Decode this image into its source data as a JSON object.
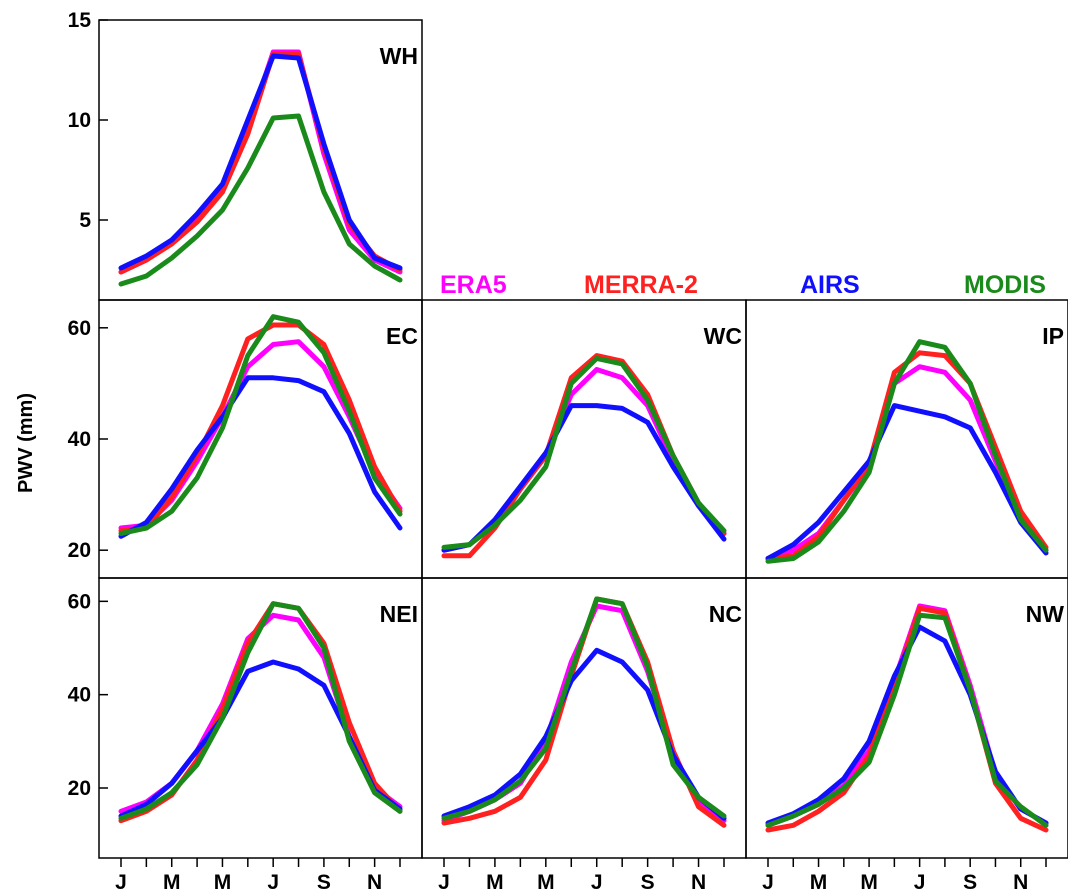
{
  "chart_data": {
    "type": "line",
    "ylabel": "PWV (mm)",
    "x_tick_labels": [
      "J",
      "M",
      "M",
      "J",
      "S",
      "N"
    ],
    "legend": [
      {
        "name": "ERA5",
        "color": "#ff00ff"
      },
      {
        "name": "MERRA-2",
        "color": "#ff2020"
      },
      {
        "name": "AIRS",
        "color": "#1010ff"
      },
      {
        "name": "MODIS",
        "color": "#1a8a1a"
      }
    ],
    "panels": [
      {
        "id": "WH",
        "title": "WH",
        "ylim": [
          1,
          15
        ],
        "yticks": [
          5,
          10,
          15
        ],
        "series": [
          {
            "name": "ERA5",
            "values": [
              2.4,
              3.0,
              3.9,
              5.1,
              6.6,
              9.6,
              13.4,
              13.4,
              8.3,
              4.5,
              3.0,
              2.4
            ]
          },
          {
            "name": "MERRA-2",
            "values": [
              2.4,
              3.0,
              3.8,
              4.9,
              6.4,
              9.3,
              13.3,
              13.3,
              8.6,
              4.8,
              3.2,
              2.5
            ]
          },
          {
            "name": "AIRS",
            "values": [
              2.6,
              3.2,
              4.0,
              5.3,
              6.8,
              10.0,
              13.2,
              13.1,
              8.8,
              5.0,
              3.1,
              2.6
            ]
          },
          {
            "name": "MODIS",
            "values": [
              1.8,
              2.2,
              3.1,
              4.2,
              5.5,
              7.6,
              10.1,
              10.2,
              6.4,
              3.8,
              2.7,
              2.0
            ]
          }
        ]
      },
      {
        "id": "EC",
        "title": "EC",
        "ylim": [
          15,
          65
        ],
        "yticks": [
          20,
          40,
          60
        ],
        "series": [
          {
            "name": "ERA5",
            "values": [
              24.0,
              24.5,
              29.0,
              36.0,
              44.0,
              53.0,
              57.0,
              57.5,
              53.0,
              44.0,
              34.0,
              27.5
            ]
          },
          {
            "name": "MERRA-2",
            "values": [
              23.5,
              24.0,
              29.5,
              37.0,
              46.0,
              58.0,
              60.5,
              60.5,
              57.0,
              47.0,
              35.0,
              27.0
            ]
          },
          {
            "name": "AIRS",
            "values": [
              22.5,
              25.0,
              31.0,
              38.0,
              44.0,
              51.0,
              51.0,
              50.5,
              48.5,
              41.0,
              30.5,
              24.0
            ]
          },
          {
            "name": "MODIS",
            "values": [
              23.0,
              24.0,
              27.0,
              33.0,
              42.0,
              55.0,
              62.0,
              61.0,
              55.5,
              45.0,
              33.0,
              26.5
            ]
          }
        ]
      },
      {
        "id": "WC",
        "title": "WC",
        "ylim": [
          15,
          65
        ],
        "yticks": [],
        "series": [
          {
            "name": "ERA5",
            "values": [
              20.0,
              21.0,
              25.0,
              31.0,
              37.0,
              48.0,
              52.5,
              51.0,
              46.0,
              36.0,
              28.0,
              23.0
            ]
          },
          {
            "name": "MERRA-2",
            "values": [
              19.0,
              19.0,
              24.0,
              31.0,
              37.0,
              51.0,
              55.0,
              54.0,
              48.0,
              37.0,
              28.5,
              23.0
            ]
          },
          {
            "name": "AIRS",
            "values": [
              20.0,
              21.0,
              25.5,
              31.5,
              37.5,
              46.0,
              46.0,
              45.5,
              43.0,
              35.0,
              28.0,
              22.0
            ]
          },
          {
            "name": "MODIS",
            "values": [
              20.5,
              21.0,
              24.5,
              29.0,
              35.0,
              50.0,
              54.5,
              53.5,
              47.0,
              37.0,
              28.5,
              23.5
            ]
          }
        ]
      },
      {
        "id": "IP",
        "title": "IP",
        "ylim": [
          15,
          65
        ],
        "yticks": [],
        "series": [
          {
            "name": "ERA5",
            "values": [
              18.5,
              20.0,
              23.0,
              29.0,
              35.0,
              50.0,
              53.0,
              52.0,
              47.0,
              36.0,
              26.0,
              20.0
            ]
          },
          {
            "name": "MERRA-2",
            "values": [
              18.5,
              19.0,
              22.5,
              29.0,
              35.5,
              52.0,
              55.5,
              55.0,
              50.0,
              38.5,
              27.0,
              20.5
            ]
          },
          {
            "name": "AIRS",
            "values": [
              18.5,
              21.0,
              25.0,
              30.5,
              36.0,
              46.0,
              45.0,
              44.0,
              42.0,
              34.0,
              25.0,
              19.5
            ]
          },
          {
            "name": "MODIS",
            "values": [
              18.0,
              18.5,
              21.5,
              27.0,
              34.0,
              50.0,
              57.5,
              56.5,
              50.0,
              37.0,
              25.5,
              20.0
            ]
          }
        ]
      },
      {
        "id": "NEI",
        "title": "NEI",
        "ylim": [
          5,
          65
        ],
        "yticks": [
          20,
          40,
          60
        ],
        "series": [
          {
            "name": "ERA5",
            "values": [
              15.0,
              17.0,
              21.0,
              28.0,
              38.0,
              52.0,
              57.0,
              56.0,
              48.0,
              31.0,
              20.0,
              16.0
            ]
          },
          {
            "name": "MERRA-2",
            "values": [
              13.0,
              15.0,
              18.5,
              26.0,
              37.0,
              51.0,
              59.5,
              58.5,
              51.0,
              34.0,
              21.0,
              15.0
            ]
          },
          {
            "name": "AIRS",
            "values": [
              14.0,
              16.5,
              21.0,
              28.0,
              35.0,
              45.0,
              47.0,
              45.5,
              42.0,
              31.0,
              19.5,
              15.5
            ]
          },
          {
            "name": "MODIS",
            "values": [
              13.5,
              15.5,
              19.0,
              25.0,
              35.0,
              49.0,
              59.5,
              58.5,
              50.0,
              30.0,
              19.0,
              15.0
            ]
          }
        ]
      },
      {
        "id": "NC",
        "title": "NC",
        "ylim": [
          5,
          65
        ],
        "yticks": [],
        "series": [
          {
            "name": "ERA5",
            "values": [
              13.0,
              15.0,
              17.5,
              21.0,
              30.0,
              47.0,
              59.0,
              58.0,
              45.0,
              27.0,
              17.0,
              13.0
            ]
          },
          {
            "name": "MERRA-2",
            "values": [
              12.5,
              13.5,
              15.0,
              18.0,
              26.0,
              44.0,
              60.5,
              59.5,
              47.0,
              28.0,
              16.0,
              12.0
            ]
          },
          {
            "name": "AIRS",
            "values": [
              14.0,
              16.0,
              18.5,
              23.0,
              31.0,
              43.0,
              49.5,
              47.0,
              41.0,
              27.0,
              18.0,
              13.5
            ]
          },
          {
            "name": "MODIS",
            "values": [
              13.5,
              15.0,
              17.5,
              21.5,
              28.5,
              45.0,
              60.5,
              59.5,
              46.0,
              25.0,
              18.0,
              14.0
            ]
          }
        ]
      },
      {
        "id": "NW",
        "title": "NW",
        "ylim": [
          5,
          65
        ],
        "yticks": [],
        "series": [
          {
            "name": "ERA5",
            "values": [
              12.0,
              14.0,
              16.5,
              20.5,
              28.0,
              43.0,
              59.0,
              58.0,
              42.0,
              23.0,
              15.5,
              12.5
            ]
          },
          {
            "name": "MERRA-2",
            "values": [
              11.0,
              12.0,
              15.0,
              19.0,
              27.0,
              42.0,
              58.5,
              57.5,
              41.0,
              21.0,
              13.5,
              11.0
            ]
          },
          {
            "name": "AIRS",
            "values": [
              12.5,
              14.5,
              17.5,
              22.0,
              30.0,
              44.0,
              54.5,
              51.5,
              40.0,
              23.5,
              15.5,
              12.5
            ]
          },
          {
            "name": "MODIS",
            "values": [
              12.0,
              14.0,
              16.5,
              20.0,
              25.5,
              40.0,
              57.0,
              56.5,
              41.0,
              21.5,
              16.0,
              12.0
            ]
          }
        ]
      }
    ]
  }
}
